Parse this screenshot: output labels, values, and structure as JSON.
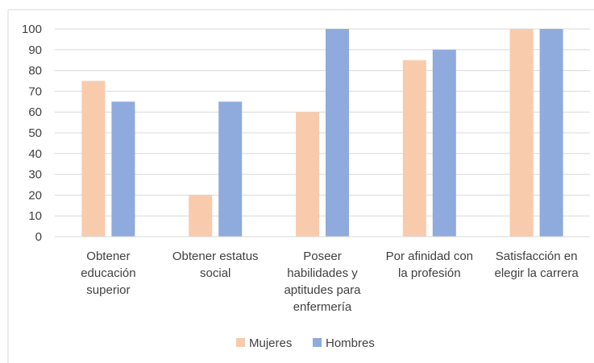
{
  "chart_data": {
    "type": "bar",
    "categories": [
      [
        "Obtener",
        "educación",
        "superior"
      ],
      [
        "Obtener estatus",
        "social"
      ],
      [
        "Poseer",
        "habilidades y",
        "aptitudes para",
        "enfermería"
      ],
      [
        "Por afinidad con",
        "la profesión"
      ],
      [
        "Satisfacción en",
        "elegir la carrera"
      ]
    ],
    "series": [
      {
        "name": "Mujeres",
        "color": "#f8cbad",
        "values": [
          75,
          20,
          60,
          85,
          100
        ]
      },
      {
        "name": "Hombres",
        "color": "#8faadc",
        "values": [
          65,
          65,
          100,
          90,
          100
        ]
      }
    ],
    "y_ticks": [
      0,
      10,
      20,
      30,
      40,
      50,
      60,
      70,
      80,
      90,
      100
    ],
    "ylim": [
      0,
      100
    ],
    "grid": true,
    "legend_position": "bottom"
  }
}
